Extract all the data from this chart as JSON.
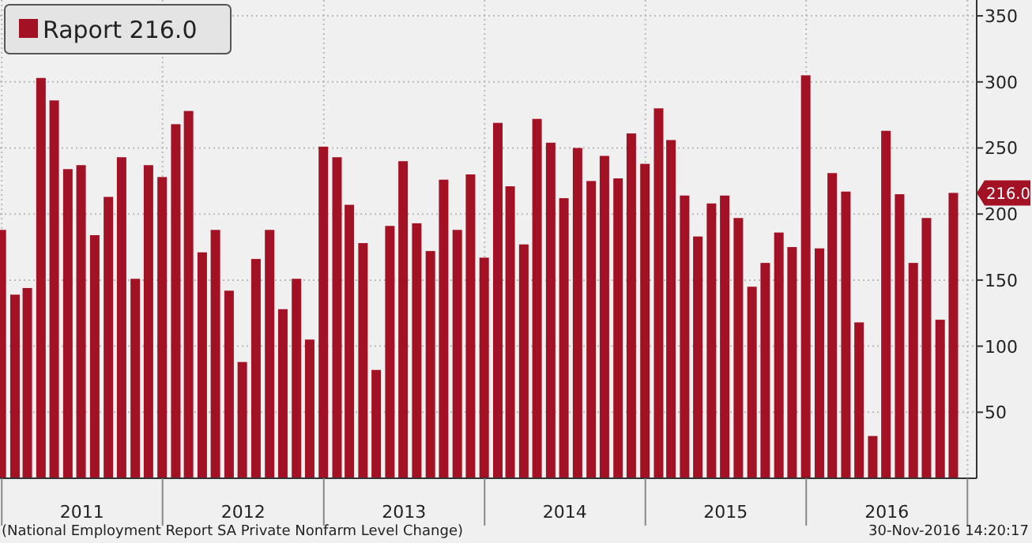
{
  "chart_data": {
    "type": "bar",
    "x": [
      "2010-12-31",
      "2011-01-31",
      "2011-02-28",
      "2011-03-31",
      "2011-04-30",
      "2011-05-31",
      "2011-06-30",
      "2011-07-31",
      "2011-08-31",
      "2011-09-30",
      "2011-10-31",
      "2011-11-30",
      "2011-12-31",
      "2012-01-31",
      "2012-02-29",
      "2012-03-31",
      "2012-04-30",
      "2012-05-31",
      "2012-06-30",
      "2012-07-31",
      "2012-08-31",
      "2012-09-30",
      "2012-10-31",
      "2012-11-30",
      "2012-12-31",
      "2013-01-31",
      "2013-02-28",
      "2013-03-31",
      "2013-04-30",
      "2013-05-31",
      "2013-06-30",
      "2013-07-31",
      "2013-08-31",
      "2013-09-30",
      "2013-10-31",
      "2013-11-30",
      "2013-12-31",
      "2014-01-31",
      "2014-02-28",
      "2014-03-31",
      "2014-04-30",
      "2014-05-31",
      "2014-06-30",
      "2014-07-31",
      "2014-08-31",
      "2014-09-30",
      "2014-10-31",
      "2014-11-30",
      "2014-12-31",
      "2015-01-31",
      "2015-02-28",
      "2015-03-31",
      "2015-04-30",
      "2015-05-31",
      "2015-06-30",
      "2015-07-31",
      "2015-08-31",
      "2015-09-30",
      "2015-10-31",
      "2015-11-30",
      "2015-12-31",
      "2016-01-31",
      "2016-02-29",
      "2016-03-31",
      "2016-04-30",
      "2016-05-31",
      "2016-06-30",
      "2016-07-31",
      "2016-08-31",
      "2016-09-30",
      "2016-10-31",
      "2016-11-30"
    ],
    "series": [
      {
        "name": "Raport 216.0",
        "color": "#a31224",
        "values": [
          188,
          139,
          144,
          303,
          286,
          234,
          237,
          184,
          213,
          243,
          151,
          237,
          228,
          268,
          278,
          171,
          188,
          142,
          88,
          166,
          188,
          128,
          151,
          105,
          251,
          243,
          207,
          178,
          82,
          191,
          240,
          193,
          172,
          226,
          188,
          230,
          167,
          269,
          221,
          177,
          272,
          254,
          212,
          250,
          225,
          244,
          227,
          261,
          238,
          280,
          256,
          214,
          183,
          208,
          214,
          197,
          145,
          163,
          186,
          175,
          305,
          174,
          231,
          217,
          118,
          32,
          263,
          215,
          163,
          197,
          120,
          216
        ]
      }
    ],
    "xlim": [
      "2010-12-28",
      "2017-01-22"
    ],
    "xticks": [
      {
        "value": "2011-01-01",
        "label": null
      },
      {
        "value": "2011-07-02",
        "label": "2011"
      },
      {
        "value": "2012-01-01",
        "label": null
      },
      {
        "value": "2012-07-02",
        "label": "2012"
      },
      {
        "value": "2013-01-01",
        "label": null
      },
      {
        "value": "2013-07-02",
        "label": "2013"
      },
      {
        "value": "2014-01-01",
        "label": null
      },
      {
        "value": "2014-07-02",
        "label": "2014"
      },
      {
        "value": "2015-01-01",
        "label": null
      },
      {
        "value": "2015-07-02",
        "label": "2015"
      },
      {
        "value": "2016-01-01",
        "label": null
      },
      {
        "value": "2016-07-02",
        "label": "2016"
      },
      {
        "value": "2017-01-01",
        "label": null
      }
    ],
    "ylim": [
      0,
      362
    ],
    "yticks": [
      50,
      100,
      150,
      200,
      250,
      300,
      350
    ],
    "grid": true,
    "legend": "top left",
    "annotations": [
      "216.0",
      "(National Employment Report SA Private Nonfarm Level Change)",
      "30-Nov-2016 14:20:17"
    ]
  }
}
